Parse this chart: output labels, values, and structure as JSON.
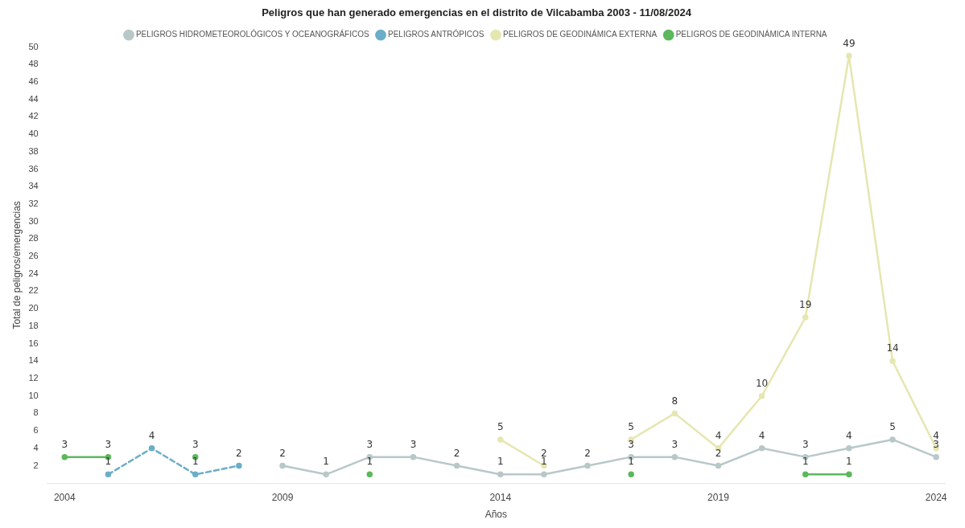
{
  "chart_data": {
    "type": "line",
    "title": "Peligros que han generado emergencias en el distrito de Vilcabamba 2003 - 11/08/2024",
    "xlabel": "Años",
    "ylabel": "Total de peligros/emergencias",
    "x": [
      2004,
      2005,
      2006,
      2007,
      2008,
      2009,
      2010,
      2011,
      2012,
      2013,
      2014,
      2015,
      2016,
      2017,
      2018,
      2019,
      2020,
      2021,
      2022,
      2023,
      2024
    ],
    "xlim": [
      2003.6,
      2024.2
    ],
    "xticks": [
      2004,
      2009,
      2014,
      2019,
      2024
    ],
    "ylim": [
      0,
      50
    ],
    "yticks": [
      2,
      4,
      6,
      8,
      10,
      12,
      14,
      16,
      18,
      20,
      22,
      24,
      26,
      28,
      30,
      32,
      34,
      36,
      38,
      40,
      42,
      44,
      46,
      48,
      50
    ],
    "series": [
      {
        "name": "PELIGROS HIDROMETEOROLÓGICOS Y OCEANOGRÁFICOS",
        "color": "#b8c8c8",
        "line_style": "solid",
        "values": [
          null,
          null,
          null,
          null,
          null,
          2,
          1,
          3,
          3,
          2,
          1,
          1,
          2,
          3,
          3,
          2,
          4,
          3,
          4,
          5,
          3
        ]
      },
      {
        "name": "PELIGROS ANTRÓPICOS",
        "color": "#6aaec8",
        "line_style": "dashed",
        "values": [
          null,
          1,
          4,
          1,
          2,
          null,
          null,
          null,
          null,
          null,
          null,
          null,
          null,
          null,
          null,
          null,
          null,
          null,
          null,
          null,
          null
        ]
      },
      {
        "name": "PELIGROS DE GEODINÁMICA EXTERNA",
        "color": "#e6e6b0",
        "line_style": "solid",
        "values": [
          null,
          null,
          null,
          null,
          null,
          null,
          null,
          null,
          null,
          null,
          5,
          2,
          null,
          5,
          8,
          4,
          10,
          19,
          49,
          14,
          4
        ]
      },
      {
        "name": "PELIGROS DE GEODINÁMICA INTERNA",
        "color": "#5cb85c",
        "line_style": "solid",
        "values": [
          3,
          3,
          null,
          3,
          null,
          null,
          null,
          1,
          null,
          null,
          null,
          null,
          null,
          1,
          null,
          null,
          null,
          1,
          1,
          null,
          null
        ]
      }
    ],
    "legend": "top",
    "marker": "circle",
    "grid": false,
    "data_labels": true
  }
}
